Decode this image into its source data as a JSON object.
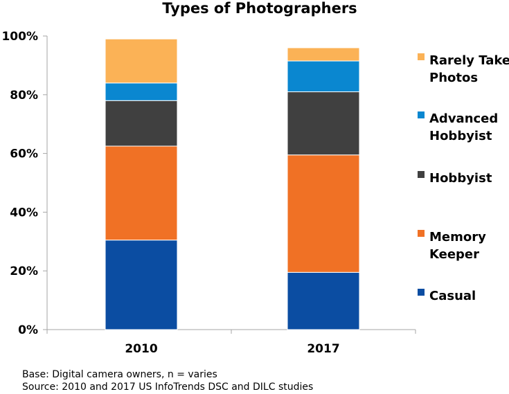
{
  "chart_data": {
    "type": "bar",
    "stacked": true,
    "title": "Types of Photographers",
    "categories": [
      "2010",
      "2017"
    ],
    "series": [
      {
        "name": "Casual",
        "color": "#0B4DA2",
        "values": [
          30.5,
          19.5
        ]
      },
      {
        "name": "Memory Keeper",
        "color": "#F07125",
        "values": [
          32.0,
          40.0
        ]
      },
      {
        "name": "Hobbyist",
        "color": "#404040",
        "values": [
          15.5,
          21.5
        ]
      },
      {
        "name": "Advanced Hobbyist",
        "color": "#0A87D0",
        "values": [
          6.0,
          10.5
        ]
      },
      {
        "name": "Rarely Take Photos",
        "color": "#FBB256",
        "values": [
          15.0,
          4.5
        ]
      }
    ],
    "ylim": [
      0,
      100
    ],
    "yticks": [
      "0%",
      "20%",
      "40%",
      "60%",
      "80%",
      "100%"
    ],
    "grid": false,
    "legend": {
      "placement": "right",
      "entries": [
        {
          "lines": [
            "Rarely Take",
            "Photos"
          ],
          "color": "#FBB256"
        },
        {
          "lines": [
            "Advanced",
            "Hobbyist"
          ],
          "color": "#0A87D0"
        },
        {
          "lines": [
            "Hobbyist"
          ],
          "color": "#404040"
        },
        {
          "lines": [
            "Memory",
            "Keeper"
          ],
          "color": "#F07125"
        },
        {
          "lines": [
            "Casual"
          ],
          "color": "#0B4DA2"
        }
      ]
    }
  },
  "footnotes": {
    "base": "Base: Digital camera owners, n = varies",
    "source": "Source: 2010 and 2017 US InfoTrends DSC and DILC studies"
  }
}
